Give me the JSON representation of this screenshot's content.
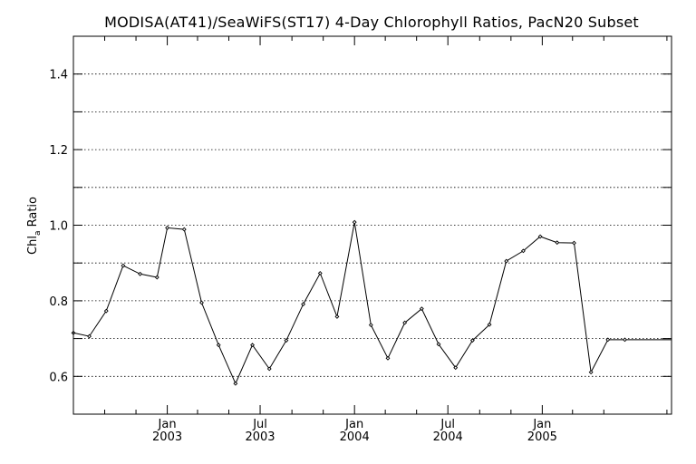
{
  "chart_data": {
    "type": "line",
    "title": "MODISA(AT41)/SeaWiFS(ST17) 4-Day Chlorophyll Ratios, PacN20 Subset",
    "ylabel": {
      "main": "Chl",
      "sub": "a",
      "rest": " Ratio"
    },
    "xlabel": "",
    "xlim": [
      "2002-07-02",
      "2005-09-10"
    ],
    "ylim": [
      0.5,
      1.5
    ],
    "grid": "horizontal-dotted",
    "y_ticks": [
      0.6,
      0.8,
      1.0,
      1.2,
      1.4
    ],
    "y_tick_labels": [
      "0.6",
      "0.8",
      "1.0",
      "1.2",
      "1.4"
    ],
    "y_minor_ticks": [
      0.5,
      0.6,
      0.7,
      0.8,
      0.9,
      1.0,
      1.1,
      1.2,
      1.3,
      1.4,
      1.5
    ],
    "x_ticks": [
      {
        "date": "2003-01-01",
        "month": "Jan",
        "year": "2003"
      },
      {
        "date": "2003-07-01",
        "month": "Jul",
        "year": "2003"
      },
      {
        "date": "2004-01-01",
        "month": "Jan",
        "year": "2004"
      },
      {
        "date": "2004-07-01",
        "month": "Jul",
        "year": "2004"
      },
      {
        "date": "2005-01-01",
        "month": "Jan",
        "year": "2005"
      }
    ],
    "x_minor_ticks": [
      "2002-09-01",
      "2002-11-01",
      "2003-03-01",
      "2003-05-01",
      "2003-09-01",
      "2003-11-01",
      "2004-03-01",
      "2004-05-01",
      "2004-09-01",
      "2004-11-01",
      "2005-03-01",
      "2005-05-01",
      "2005-09-01"
    ],
    "series": [
      {
        "x": [
          "2002-07-02",
          "2002-08-02",
          "2002-09-04",
          "2002-10-07",
          "2002-11-09",
          "2002-12-12",
          "2003-01-01",
          "2003-02-03",
          "2003-03-09",
          "2003-04-11",
          "2003-05-14",
          "2003-06-16",
          "2003-07-19",
          "2003-08-21",
          "2003-09-23",
          "2003-10-26",
          "2003-11-28",
          "2004-01-01",
          "2004-02-02",
          "2004-03-06",
          "2004-04-08",
          "2004-05-11",
          "2004-06-13",
          "2004-07-16",
          "2004-08-18",
          "2004-09-20",
          "2004-10-23",
          "2004-11-25",
          "2004-12-28",
          "2005-01-30",
          "2005-03-04",
          "2005-04-06",
          "2005-05-09",
          "2005-06-11",
          "2005-09-10"
        ],
        "values": [
          0.715,
          0.706,
          0.773,
          0.893,
          0.871,
          0.862,
          0.993,
          0.989,
          0.795,
          0.683,
          0.581,
          0.683,
          0.62,
          0.695,
          0.791,
          0.873,
          0.758,
          1.008,
          0.736,
          0.648,
          0.742,
          0.779,
          0.685,
          0.623,
          0.695,
          0.737,
          0.905,
          0.932,
          0.97,
          0.954,
          0.953,
          0.611,
          0.697,
          0.697,
          0.697
        ]
      }
    ]
  }
}
